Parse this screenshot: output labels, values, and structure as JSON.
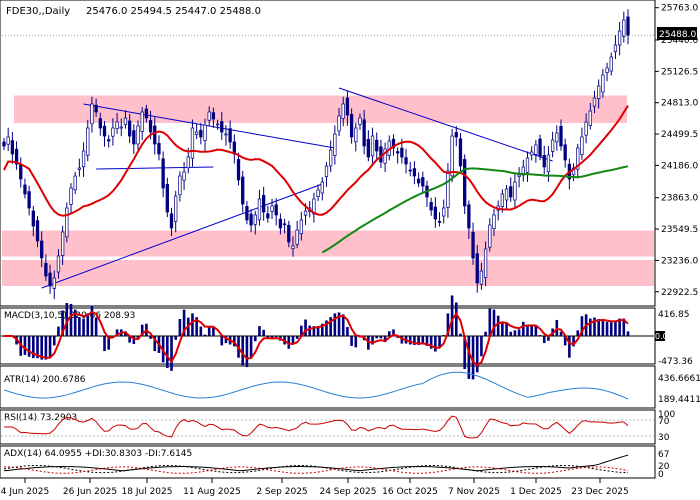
{
  "chart_data": {
    "type": "candlestick",
    "title": "FDE30,,Daily",
    "ohlc_text": "25476.0 25494.5 25447.0 25488.0",
    "last_price": "25488.0",
    "price_axis": {
      "range": [
        22800,
        25820
      ],
      "ticks": [
        "25763.0",
        "25440.0",
        "25126.5",
        "24813.0",
        "24499.5",
        "24186.0",
        "23863.0",
        "23549.5",
        "23236.0",
        "22922.5"
      ]
    },
    "x_labels": [
      "4 Jun 2025",
      "26 Jun 2025",
      "18 Jul 2025",
      "11 Aug 2025",
      "2 Sep 2025",
      "24 Sep 2025",
      "16 Oct 2025",
      "7 Nov 2025",
      "1 Dec 2025",
      "23 Dec 2025"
    ],
    "session_count": 150,
    "candles_close": [
      24380,
      24470,
      24300,
      24200,
      24050,
      23900,
      23760,
      23580,
      23430,
      23260,
      23080,
      22980,
      23060,
      23280,
      23520,
      23760,
      23960,
      24080,
      24160,
      24330,
      24560,
      24800,
      24720,
      24560,
      24480,
      24430,
      24560,
      24620,
      24570,
      24660,
      24480,
      24400,
      24580,
      24720,
      24660,
      24520,
      24400,
      24300,
      23960,
      23720,
      23560,
      23880,
      24080,
      24120,
      24270,
      24560,
      24520,
      24470,
      24590,
      24720,
      24650,
      24600,
      24520,
      24500,
      24420,
      24300,
      24040,
      23800,
      23640,
      23590,
      23690,
      23850,
      23720,
      23660,
      23780,
      23690,
      23560,
      23600,
      23420,
      23380,
      23540,
      23640,
      23730,
      23760,
      23850,
      23940,
      24020,
      24180,
      24340,
      24500,
      24680,
      24800,
      24690,
      24470,
      24560,
      24660,
      24380,
      24270,
      24480,
      24330,
      24220,
      24350,
      24430,
      24360,
      24310,
      24270,
      24200,
      24130,
      24080,
      24010,
      23980,
      23870,
      23740,
      23650,
      23620,
      23760,
      24130,
      24480,
      24470,
      24180,
      23780,
      23560,
      23260,
      23010,
      23130,
      23350,
      23590,
      23690,
      23780,
      23900,
      23950,
      23870,
      24020,
      24090,
      24170,
      24260,
      24320,
      24390,
      24280,
      24170,
      24290,
      24440,
      24510,
      24380,
      24240,
      24050,
      24160,
      24360,
      24470,
      24620,
      24730,
      24860,
      24980,
      25090,
      25160,
      25270,
      25390,
      25530,
      25640,
      25488
    ],
    "ma_red_period_unspecified": true,
    "ma_green_period_unspecified": true,
    "zones": [
      {
        "name": "upper-zone",
        "from": 24610,
        "to": 24885,
        "color": "#ffc0cb"
      },
      {
        "name": "lower-zone-1",
        "from": 23275,
        "to": 23535,
        "color": "#ffc0cb"
      },
      {
        "name": "lower-zone-2",
        "from": 22980,
        "to": 23240,
        "color": "#ffc0cb"
      }
    ],
    "indicators": {
      "macd": {
        "label": "MACD(3,10,5) 220.66 208.93",
        "ticks": [
          "416.85",
          "0.00",
          "-473.36"
        ]
      },
      "atr": {
        "label": "ATR(14) 200.6786",
        "ticks": [
          "436.6661",
          "189.4411"
        ]
      },
      "rsi": {
        "label": "RSI(14) 73.2903",
        "ticks": [
          "100",
          "70",
          "30"
        ]
      },
      "adx": {
        "label": "ADX(14) 64.0955 +DI:30.8303 -DI:7.6145",
        "ticks": [
          "67",
          "20",
          "0"
        ]
      }
    },
    "colors": {
      "up": "#00008b",
      "down": "#00008b",
      "ma_red": "#dd0000",
      "ma_green": "#118811",
      "zone": "#ffc0cb",
      "trend": "#0000cc",
      "atr": "#2a7fd4",
      "rsi": "#cc0000"
    }
  }
}
